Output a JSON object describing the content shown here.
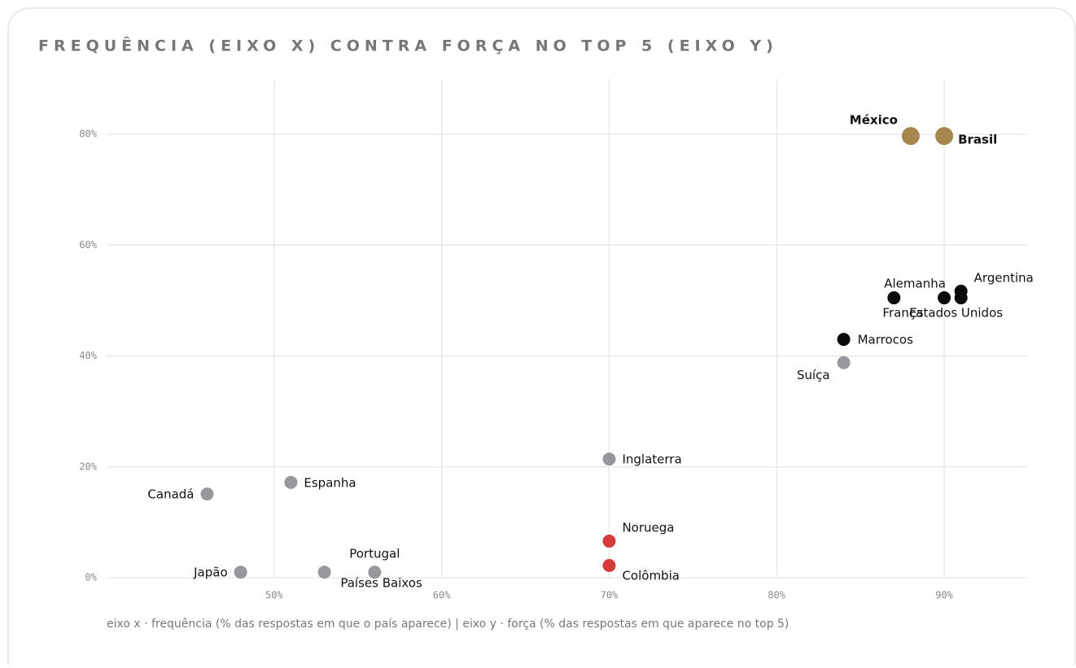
{
  "chart_data": {
    "type": "scatter",
    "title": "FREQUÊNCIA (EIXO X) CONTRA FORÇA NO TOP 5 (EIXO Y)",
    "caption": "eixo x · frequência (% das respostas em que o país aparece) | eixo y · força (% das respostas em que aparece no top 5)",
    "xlim": [
      40,
      95
    ],
    "ylim": [
      0,
      90
    ],
    "xticks": [
      {
        "value": 50,
        "label": "50%"
      },
      {
        "value": 60,
        "label": "60%"
      },
      {
        "value": 70,
        "label": "70%"
      },
      {
        "value": 80,
        "label": "80%"
      },
      {
        "value": 90,
        "label": "90%"
      }
    ],
    "yticks": [
      {
        "value": 0,
        "label": "0%"
      },
      {
        "value": 20,
        "label": "20%"
      },
      {
        "value": 40,
        "label": "40%"
      },
      {
        "value": 60,
        "label": "60%"
      },
      {
        "value": 80,
        "label": "80%"
      }
    ],
    "grid": true,
    "points": [
      {
        "label": "México",
        "x": 88,
        "y": 79.7,
        "color": "#a8874f",
        "emphasis": true
      },
      {
        "label": "Brasil",
        "x": 90,
        "y": 79.7,
        "color": "#a8874f",
        "emphasis": true
      },
      {
        "label": "Alemanha",
        "x": 90,
        "y": 50.5,
        "color": "#0a0a0a"
      },
      {
        "label": "França",
        "x": 87,
        "y": 50.5,
        "color": "#0a0a0a"
      },
      {
        "label": "Estados Unidos",
        "x": 91,
        "y": 50.5,
        "color": "#0a0a0a"
      },
      {
        "label": "Argentina",
        "x": 91,
        "y": 51.7,
        "color": "#0a0a0a"
      },
      {
        "label": "Marrocos",
        "x": 84,
        "y": 43,
        "color": "#0a0a0a"
      },
      {
        "label": "Suíça",
        "x": 84,
        "y": 38.8,
        "color": "#98989c"
      },
      {
        "label": "Inglaterra",
        "x": 70,
        "y": 21.4,
        "color": "#98989c"
      },
      {
        "label": "Espanha",
        "x": 51,
        "y": 17.2,
        "color": "#98989c"
      },
      {
        "label": "Canadá",
        "x": 46,
        "y": 15.1,
        "color": "#98989c"
      },
      {
        "label": "Noruega",
        "x": 70,
        "y": 6.6,
        "color": "#d63b3b"
      },
      {
        "label": "Colômbia",
        "x": 70,
        "y": 2.2,
        "color": "#d63b3b"
      },
      {
        "label": "Japão",
        "x": 48,
        "y": 1,
        "color": "#98989c"
      },
      {
        "label": "Portugal",
        "x": 56,
        "y": 1,
        "color": "#98989c"
      },
      {
        "label": "Países Baixos",
        "x": 53,
        "y": 1,
        "color": "#98989c"
      }
    ]
  }
}
